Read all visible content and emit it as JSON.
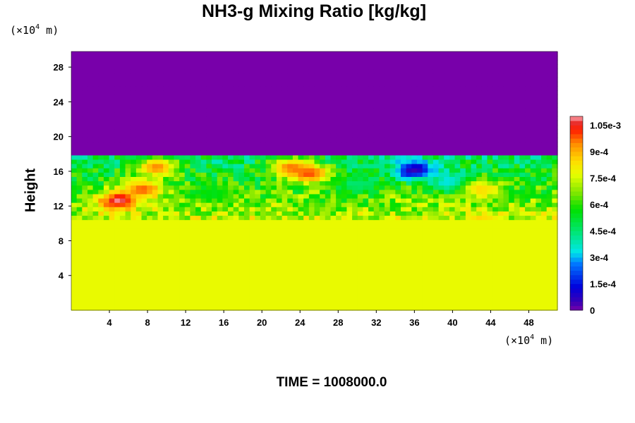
{
  "chart_data": {
    "type": "heatmap",
    "title": "NH3-g Mixing Ratio [kg/kg]",
    "xlabel": "",
    "ylabel": "Height",
    "x_unit": {
      "pre": "(×10",
      "exp": "4",
      "post": " m)"
    },
    "y_unit": {
      "pre": "(×10",
      "exp": "4",
      "post": " m)"
    },
    "x_ticks": [
      4,
      8,
      12,
      16,
      20,
      24,
      28,
      32,
      36,
      40,
      44,
      48
    ],
    "y_ticks": [
      4,
      8,
      12,
      16,
      20,
      24,
      28
    ],
    "xlim": [
      0,
      51
    ],
    "ylim": [
      0,
      29.8
    ],
    "colorbar": {
      "min": 0,
      "max": 0.0011,
      "tick_values": [
        0,
        0.00015,
        0.0003,
        0.00045,
        0.0006,
        0.00075,
        0.0009,
        0.00105
      ],
      "tick_labels": [
        "0",
        "1.5e-4",
        "3e-4",
        "4.5e-4",
        "6e-4",
        "7.5e-4",
        "9e-4",
        "1.05e-3"
      ]
    },
    "field_summary": {
      "lower_layer_value": 0.00078,
      "upper_layer_value": 0.0,
      "lower_layer_top": 10.5,
      "mixed_layer_top": 17.8,
      "features": [
        {
          "x": 5.0,
          "y": 12.7,
          "value": 0.0011
        },
        {
          "x": 7.5,
          "y": 14.0,
          "value": 0.00098
        },
        {
          "x": 9.0,
          "y": 16.5,
          "value": 0.00095
        },
        {
          "x": 23.0,
          "y": 16.5,
          "value": 0.00095
        },
        {
          "x": 25.0,
          "y": 15.8,
          "value": 0.001
        },
        {
          "x": 36.0,
          "y": 16.2,
          "value": 5e-05
        },
        {
          "x": 40.0,
          "y": 14.8,
          "value": 0.0003
        },
        {
          "x": 43.0,
          "y": 14.0,
          "value": 0.00085
        },
        {
          "x": 30.0,
          "y": 14.5,
          "value": 0.00045
        },
        {
          "x": 15.0,
          "y": 13.5,
          "value": 0.00055
        }
      ]
    }
  },
  "footer": {
    "time_label": "TIME = 1008000.0"
  }
}
